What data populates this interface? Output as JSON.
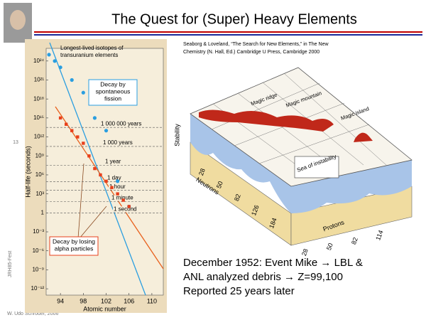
{
  "title": "The Quest for (Super) Heavy Elements",
  "citation": [
    "Seaborg & Loveland, “The Search for New Elements,” in The New",
    "Chemistry (N. Hall, Ed.) Cambridge U Press, Cambridge 2000"
  ],
  "page_number": "13",
  "side_label": "JRH85-Fest",
  "footer": "W. Udo Schröder, 2006",
  "notes": [
    "December 1952: Event Mike → LBL &",
    "ANL analyzed debris → Z=99,100",
    "Reported 25 years later"
  ],
  "chart_data": {
    "type": "scatter",
    "log_y": true,
    "title": [
      "Longest-lived isotopes of",
      "transuranium elements"
    ],
    "xlabel": "Atomic number",
    "ylabel": "Half-life (seconds)",
    "xlim": [
      91.5,
      112
    ],
    "xticks": [
      94,
      98,
      102,
      106,
      110
    ],
    "ylim": [
      1e-13,
      1e+26
    ],
    "yticks": [
      {
        "value": 1e+24,
        "label": "10²⁴"
      },
      {
        "value": 1e+21,
        "label": "10²¹"
      },
      {
        "value": 1e+18,
        "label": "10¹⁸"
      },
      {
        "value": 1000000000000000.0,
        "label": "10¹⁵"
      },
      {
        "value": 1000000000000.0,
        "label": "10¹²"
      },
      {
        "value": 1000000000.0,
        "label": "10⁹"
      },
      {
        "value": 1000000.0,
        "label": "10⁶"
      },
      {
        "value": 1000,
        "label": "10³"
      },
      1,
      {
        "value": 0.001,
        "label": "10⁻³"
      },
      {
        "value": 1e-06,
        "label": "10⁻⁶"
      },
      {
        "value": 1e-09,
        "label": "10⁻⁹"
      },
      {
        "value": 1e-12,
        "label": "10⁻¹²"
      }
    ],
    "annotations": [
      {
        "label": "1 000 000 years",
        "value": 31500000000000.0
      },
      {
        "label": "1 000 years",
        "value": 31500000000.0
      },
      {
        "label": "1 year",
        "value": 31500000.0
      },
      {
        "label": "1 day",
        "value": 86400
      },
      {
        "label": "1 hour",
        "value": 3600
      },
      {
        "label": "1 minute",
        "value": 60
      },
      {
        "label": "1 second",
        "value": 1
      }
    ],
    "series": [
      {
        "name": [
          "Decay by",
          "spontaneous",
          "fission"
        ],
        "color": "#2a9ee0",
        "marker": "circle",
        "x": [
          92,
          93,
          94,
          96,
          98,
          100,
          102,
          104,
          106
        ],
        "values": [
          1e+25,
          1e+24,
          1e+23,
          1e+21,
          1e+19,
          1000000000000000.0,
          10000000000000.0,
          100000.0,
          10
        ]
      },
      {
        "name": [
          "Decay by losing",
          "alpha particles"
        ],
        "color": "#e8401c",
        "marker": "square",
        "x": [
          94,
          95,
          96,
          97,
          98,
          99,
          100,
          101,
          102,
          103,
          104,
          105,
          106
        ],
        "values": [
          1000000000000000.0,
          100000000000000.0,
          10000000000000.0,
          1000000000000.0,
          100000000000.0,
          1000000000.0,
          10000000.0,
          1000000.0,
          100000.0,
          10000.0,
          1000,
          100,
          10
        ]
      }
    ]
  },
  "diagram": {
    "labels": [
      "Stability",
      "Magic ridge",
      "Magic mountain",
      "Magic island",
      "Sea of instability",
      "Neutrons",
      "Protons"
    ],
    "neutron_ticks": [
      28,
      50,
      82,
      126,
      184
    ],
    "proton_ticks": [
      28,
      50,
      82,
      114
    ]
  }
}
